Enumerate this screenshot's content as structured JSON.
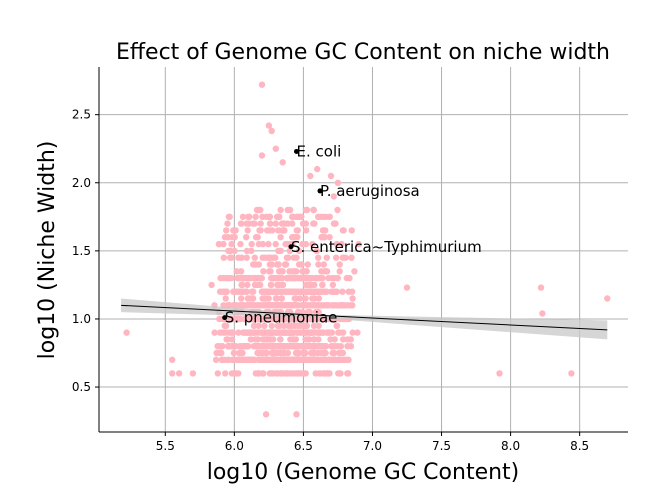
{
  "chart_data": {
    "type": "scatter",
    "title": "Effect of Genome GC Content on niche width",
    "xlabel": "log10 (Genome GC Content)",
    "ylabel": "log10 (Niche Width)",
    "xlim": [
      5.02,
      8.85
    ],
    "ylim": [
      0.17,
      2.85
    ],
    "x_ticks": [
      5.5,
      6.0,
      6.5,
      7.0,
      7.5,
      8.0,
      8.5
    ],
    "y_ticks": [
      0.5,
      1.0,
      1.5,
      2.0,
      2.5
    ],
    "x_tick_labels": [
      "5.5",
      "6.0",
      "6.5",
      "7.0",
      "7.5",
      "8.0",
      "8.5"
    ],
    "y_tick_labels": [
      "0.5",
      "1.0",
      "1.5",
      "2.0",
      "2.5"
    ],
    "grid": true,
    "point_color": "#ffb6c1",
    "regression": {
      "x": [
        5.18,
        8.7
      ],
      "y": [
        1.1,
        0.92
      ],
      "line_color": "#000000",
      "ci_color": "#c8c8c8"
    },
    "points": [
      [
        6.2,
        2.72
      ],
      [
        6.25,
        2.42
      ],
      [
        6.27,
        2.38
      ],
      [
        6.45,
        0.3
      ],
      [
        6.23,
        0.3
      ],
      [
        5.22,
        0.9
      ],
      [
        5.55,
        0.6
      ],
      [
        5.55,
        0.7
      ],
      [
        5.6,
        0.6
      ],
      [
        5.7,
        0.6
      ],
      [
        7.25,
        1.23
      ],
      [
        7.92,
        0.6
      ],
      [
        8.22,
        1.23
      ],
      [
        8.23,
        1.04
      ],
      [
        8.44,
        0.6
      ],
      [
        8.7,
        1.15
      ],
      [
        6.7,
        2.05
      ],
      [
        6.75,
        2.0
      ],
      [
        6.72,
        1.9
      ],
      [
        6.85,
        1.65
      ],
      [
        6.9,
        1.55
      ],
      [
        6.3,
        2.25
      ],
      [
        6.35,
        2.15
      ],
      [
        6.2,
        2.2
      ],
      [
        6.55,
        2.05
      ],
      [
        6.6,
        2.1
      ]
    ],
    "annotations": [
      {
        "label": "E. coli",
        "x": 6.45,
        "y": 2.23
      },
      {
        "label": "P. aeruginosa",
        "x": 6.62,
        "y": 1.94
      },
      {
        "label": "S. enterica~Typhimurium",
        "x": 6.41,
        "y": 1.53
      },
      {
        "label": "S. pneumoniae",
        "x": 5.93,
        "y": 1.01
      }
    ]
  }
}
